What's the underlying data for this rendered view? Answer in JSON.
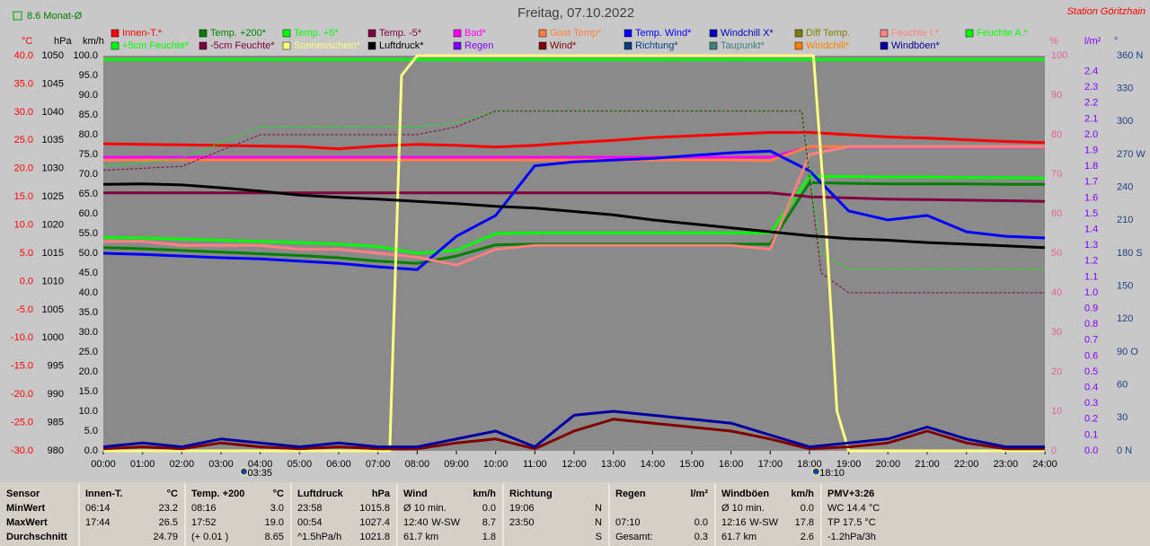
{
  "chart_data": {
    "type": "line",
    "title": "Freitag, 07.10.2022",
    "subtitle": "Station Göritzhain",
    "month_average_label": "8.6 Monat-Ø",
    "xlim": [
      0,
      24
    ],
    "xticks": [
      {
        "value": 0,
        "label": "00:00"
      },
      {
        "value": 1,
        "label": "01:00"
      },
      {
        "value": 2,
        "label": "02:00"
      },
      {
        "value": 3,
        "label": "03:00"
      },
      {
        "value": 4,
        "label": "04:00"
      },
      {
        "value": 5,
        "label": "05:00"
      },
      {
        "value": 6,
        "label": "06:00"
      },
      {
        "value": 7,
        "label": "07:00"
      },
      {
        "value": 8,
        "label": "08:00"
      },
      {
        "value": 9,
        "label": "09:00"
      },
      {
        "value": 10,
        "label": "10:00"
      },
      {
        "value": 11,
        "label": "11:00"
      },
      {
        "value": 12,
        "label": "12:00"
      },
      {
        "value": 13,
        "label": "13:00"
      },
      {
        "value": 14,
        "label": "14:00"
      },
      {
        "value": 15,
        "label": "15:00"
      },
      {
        "value": 16,
        "label": "16:00"
      },
      {
        "value": 17,
        "label": "17:00"
      },
      {
        "value": 18,
        "label": "18:00"
      },
      {
        "value": 19,
        "label": "19:00"
      },
      {
        "value": 20,
        "label": "20:00"
      },
      {
        "value": 21,
        "label": "21:00"
      },
      {
        "value": 22,
        "label": "22:00"
      },
      {
        "value": 23,
        "label": "23:00"
      },
      {
        "value": 24,
        "label": "24:00"
      }
    ],
    "x": [
      0,
      1,
      2,
      3,
      4,
      5,
      6,
      7,
      8,
      9,
      10,
      11,
      12,
      13,
      14,
      15,
      16,
      17,
      18,
      19,
      20,
      21,
      22,
      23,
      24
    ],
    "axes": [
      {
        "label": "°C",
        "color": "#ff0000",
        "lim": [
          -30,
          40
        ],
        "ticks": [
          {
            "value": 40,
            "label": "40.0"
          },
          {
            "value": 35,
            "label": "35.0"
          },
          {
            "value": 30,
            "label": "30.0"
          },
          {
            "value": 25,
            "label": "25.0"
          },
          {
            "value": 20,
            "label": "20.0"
          },
          {
            "value": 15,
            "label": "15.0"
          },
          {
            "value": 10,
            "label": "10.0"
          },
          {
            "value": 5,
            "label": "5.0"
          },
          {
            "value": 0,
            "label": "0.0"
          },
          {
            "value": -5,
            "label": "-5.0"
          },
          {
            "value": -10,
            "label": "-10.0"
          },
          {
            "value": -15,
            "label": "-15.0"
          },
          {
            "value": -20,
            "label": "-20.0"
          },
          {
            "value": -25,
            "label": "-25.0"
          },
          {
            "value": -30,
            "label": "-30.0"
          }
        ]
      },
      {
        "label": "hPa",
        "color": "#000000",
        "lim": [
          980,
          1050
        ],
        "ticks": [
          1050,
          1045,
          1040,
          1035,
          1030,
          1025,
          1020,
          1015,
          1010,
          1005,
          1000,
          995,
          990,
          985,
          980
        ]
      },
      {
        "label": "km/h",
        "color": "#000000",
        "lim": [
          0,
          100
        ],
        "ticks": [
          {
            "value": 100,
            "label": "100.0"
          },
          {
            "value": 95,
            "label": "95.0"
          },
          {
            "value": 90,
            "label": "90.0"
          },
          {
            "value": 85,
            "label": "85.0"
          },
          {
            "value": 80,
            "label": "80.0"
          },
          {
            "value": 75,
            "label": "75.0"
          },
          {
            "value": 70,
            "label": "70.0"
          },
          {
            "value": 65,
            "label": "65.0"
          },
          {
            "value": 60,
            "label": "60.0"
          },
          {
            "value": 55,
            "label": "55.0"
          },
          {
            "value": 50,
            "label": "50.0"
          },
          {
            "value": 45,
            "label": "45.0"
          },
          {
            "value": 40,
            "label": "40.0"
          },
          {
            "value": 35,
            "label": "35.0"
          },
          {
            "value": 30,
            "label": "30.0"
          },
          {
            "value": 25,
            "label": "25.0"
          },
          {
            "value": 20,
            "label": "20.0"
          },
          {
            "value": 15,
            "label": "15.0"
          },
          {
            "value": 10,
            "label": "10.0"
          },
          {
            "value": 5,
            "label": "5.0"
          },
          {
            "value": 0,
            "label": "0.0"
          }
        ]
      },
      {
        "label": "%",
        "color": "#e0609b",
        "lim": [
          0,
          100
        ],
        "ticks": [
          100,
          90,
          80,
          70,
          60,
          50,
          40,
          30,
          20,
          10,
          0
        ]
      },
      {
        "label": "l/m²",
        "color": "#8000ff",
        "lim": [
          0,
          2.5
        ],
        "ticks": [
          2.4,
          2.3,
          2.2,
          2.1,
          {
            "value": 2,
            "label": "2.0"
          },
          1.9,
          1.8,
          1.7,
          1.6,
          1.5,
          1.4,
          1.3,
          1.2,
          1.1,
          {
            "value": 1,
            "label": "1.0"
          },
          0.9,
          0.8,
          0.7,
          0.6,
          0.5,
          0.4,
          0.3,
          0.2,
          0.1,
          {
            "value": 0,
            "label": "0.0"
          }
        ]
      },
      {
        "label": "°",
        "color": "#204080",
        "lim": [
          0,
          360
        ],
        "ticks": [
          {
            "value": 360,
            "label": "360 N"
          },
          330,
          300,
          {
            "value": 270,
            "label": "270 W"
          },
          240,
          210,
          {
            "value": 180,
            "label": "180 S"
          },
          150,
          120,
          {
            "value": 90,
            "label": "90 O"
          },
          60,
          30,
          {
            "value": 0,
            "label": "0 N"
          }
        ]
      }
    ],
    "series": [
      {
        "name": "Innen-T.*",
        "color": "#ff0000",
        "axis": 0,
        "values": [
          24.4,
          24.3,
          24.2,
          24.1,
          24.0,
          23.9,
          23.5,
          24.0,
          24.3,
          24.1,
          23.8,
          24.1,
          24.6,
          25.0,
          25.5,
          25.8,
          26.1,
          26.4,
          26.4,
          26.0,
          25.6,
          25.4,
          25.1,
          24.8,
          24.6
        ]
      },
      {
        "name": "Temp. +200*",
        "color": "#008000",
        "axis": 0,
        "values": [
          6.0,
          5.8,
          5.5,
          5.2,
          4.9,
          4.6,
          4.2,
          3.6,
          3.2,
          4.5,
          6.5,
          6.6,
          6.6,
          6.6,
          6.6,
          6.6,
          6.6,
          6.6,
          17.5,
          17.4,
          17.3,
          17.3,
          17.3,
          17.2,
          17.2
        ]
      },
      {
        "name": "Temp. +5*",
        "color": "#00ff00",
        "axis": 0,
        "values": [
          7.8,
          7.7,
          7.5,
          7.3,
          7.1,
          6.9,
          6.6,
          6.2,
          5.0,
          5.5,
          8.5,
          8.6,
          8.6,
          8.6,
          8.6,
          8.6,
          8.6,
          8.6,
          18.6,
          18.6,
          18.5,
          18.5,
          18.4,
          18.4,
          18.3
        ]
      },
      {
        "name": "Temp. -5*",
        "color": "#800040",
        "axis": 0,
        "values": [
          15.7,
          15.7,
          15.7,
          15.7,
          15.7,
          15.7,
          15.7,
          15.7,
          15.7,
          15.7,
          15.7,
          15.7,
          15.7,
          15.7,
          15.7,
          15.7,
          15.7,
          15.7,
          15.0,
          14.8,
          14.6,
          14.5,
          14.4,
          14.3,
          14.2
        ]
      },
      {
        "name": "Bad*",
        "color": "#ff00ff",
        "axis": 0,
        "values": [
          22.0,
          22.0,
          22.0,
          22.0,
          22.0,
          22.0,
          22.0,
          22.0,
          22.0,
          22.0,
          22.0,
          22.0,
          22.0,
          22.0,
          22.0,
          22.0,
          22.0,
          22.0,
          23.8,
          23.8,
          23.8,
          23.8,
          23.8,
          23.8,
          23.8
        ]
      },
      {
        "name": "Gast Temp*",
        "color": "#ff8040",
        "axis": 0,
        "values": [
          21.5,
          21.5,
          21.5,
          21.5,
          21.5,
          21.5,
          21.5,
          21.5,
          21.5,
          21.5,
          21.5,
          21.5,
          21.5,
          21.5,
          21.5,
          21.5,
          21.5,
          21.4,
          23.9,
          23.9,
          23.9,
          23.9,
          23.9,
          23.9,
          23.9
        ]
      },
      {
        "name": "Temp. Wind*",
        "color": "#0000ff",
        "axis": 0,
        "values": [
          5.0,
          4.8,
          4.5,
          4.2,
          4.0,
          3.6,
          3.2,
          2.6,
          2.1,
          8.0,
          11.7,
          20.5,
          21.2,
          21.5,
          21.8,
          22.3,
          22.8,
          23.1,
          19.6,
          12.5,
          10.9,
          11.7,
          8.8,
          8.0,
          7.7
        ]
      },
      {
        "name": "Windchill X*",
        "color": "#0000c0",
        "axis": 0
      },
      {
        "name": "Diff Temp.",
        "color": "#808000",
        "axis": 0
      },
      {
        "name": "Feuchte I.*",
        "color": "#ff8080",
        "axis": 3,
        "values": [
          53,
          53,
          52,
          52,
          52,
          51,
          51,
          50,
          49,
          47,
          51,
          52,
          52,
          52,
          52,
          52,
          52,
          51,
          75,
          77,
          77,
          77,
          77,
          77,
          77
        ]
      },
      {
        "name": "Feuchte A.*",
        "color": "#00ff00",
        "axis": 3,
        "values": [
          99,
          99,
          99,
          99,
          99,
          99,
          99,
          99,
          99,
          99,
          99,
          99,
          99,
          99,
          99,
          99,
          99,
          99,
          99,
          99,
          99,
          99,
          99,
          99,
          99
        ]
      },
      {
        "name": "+5cm Feuchte*",
        "color": "#00ff00",
        "axis": 3,
        "style": "dashed",
        "x": [
          0,
          2,
          4,
          6,
          8,
          9,
          10,
          17.6,
          17.8,
          18.3,
          19,
          24
        ],
        "values": [
          72,
          74,
          82,
          82,
          82,
          83,
          86,
          86,
          86,
          50,
          46,
          46
        ]
      },
      {
        "name": "-5cm Feuchte*",
        "color": "#800040",
        "axis": 3,
        "style": "dashed",
        "x": [
          0,
          2,
          4,
          6,
          8,
          9,
          10,
          17.6,
          17.8,
          18.3,
          19,
          24
        ],
        "values": [
          71,
          72,
          80,
          80,
          80,
          82,
          86,
          86,
          86,
          45,
          40,
          40
        ]
      },
      {
        "name": "Sonnenschein*",
        "color": "#ffff80",
        "axis": 3,
        "x": [
          0,
          7.3,
          7.6,
          8,
          17.5,
          18.1,
          18.4,
          18.7,
          19,
          24
        ],
        "values": [
          0,
          0,
          95,
          100,
          100,
          100,
          60,
          10,
          0,
          0
        ]
      },
      {
        "name": "Luftdruck*",
        "color": "#000000",
        "axis": 1,
        "values": [
          1027.2,
          1027.3,
          1027.1,
          1026.6,
          1026.0,
          1025.3,
          1024.9,
          1024.6,
          1024.2,
          1023.8,
          1023.3,
          1023.0,
          1022.4,
          1021.8,
          1020.9,
          1020.2,
          1019.5,
          1018.8,
          1018.1,
          1017.6,
          1017.3,
          1016.9,
          1016.6,
          1016.3,
          1016.0
        ]
      },
      {
        "name": "Regen",
        "color": "#8000ff",
        "axis": 4
      },
      {
        "name": "Wind*",
        "color": "#800000",
        "axis": 2,
        "values": [
          0.5,
          1,
          0.5,
          2,
          1,
          0.5,
          1,
          0.5,
          0.5,
          2,
          3,
          0.5,
          5,
          8,
          7,
          6,
          5,
          3,
          0.5,
          1,
          2,
          5,
          2,
          0.5,
          0.5
        ]
      },
      {
        "name": "Richtung*",
        "color": "#004080",
        "axis": 5
      },
      {
        "name": "Taupunkt*",
        "color": "#408080",
        "axis": 0
      },
      {
        "name": "Windchill*",
        "color": "#ff8000",
        "axis": 0
      },
      {
        "name": "Windböen*",
        "color": "#0000a0",
        "axis": 2,
        "values": [
          1,
          2,
          1,
          3,
          2,
          1,
          2,
          1,
          1,
          3,
          5,
          1,
          9,
          10,
          9,
          8,
          7,
          4,
          1,
          2,
          3,
          6,
          3,
          1,
          1
        ]
      }
    ],
    "annotations": [
      {
        "x": 3.583,
        "label": "03:35"
      },
      {
        "x": 18.167,
        "label": "18:10"
      }
    ]
  },
  "table": {
    "columns": [
      {
        "title": "Sensor"
      },
      {
        "title": "Innen-T.",
        "unit": "°C"
      },
      {
        "title": "Temp. +200",
        "unit": "°C"
      },
      {
        "title": "Luftdruck",
        "unit": "hPa"
      },
      {
        "title": "Wind",
        "unit": "km/h"
      },
      {
        "title": "Richtung"
      },
      {
        "title": "Regen",
        "unit": "l/m²"
      },
      {
        "title": "Windböen",
        "unit": "km/h"
      },
      {
        "title": "PMV+3:26"
      }
    ],
    "rows": [
      {
        "label": "MinWert",
        "cells": [
          [
            "06:14",
            "23.2"
          ],
          [
            "08:16",
            "3.0"
          ],
          [
            "23:58",
            "1015.8"
          ],
          [
            "Ø 10 min.",
            "0.0"
          ],
          [
            "19:06",
            "N"
          ],
          [],
          [
            "Ø 10 min.",
            "0.0"
          ],
          [
            "WC 14.4 °C"
          ]
        ]
      },
      {
        "label": "MaxWert",
        "cells": [
          [
            "17:44",
            "26.5"
          ],
          [
            "17:52",
            "19.0"
          ],
          [
            "00:54",
            "1027.4"
          ],
          [
            "12:40",
            "W-SW",
            "8.7"
          ],
          [
            "23:50",
            "N"
          ],
          [
            "07:10",
            "0.0"
          ],
          [
            "12:16",
            "W-SW",
            "17.8"
          ],
          [
            "TP 17.5 °C"
          ]
        ]
      },
      {
        "label": "Durchschnitt",
        "cells": [
          [
            "24.79"
          ],
          [
            "(+ 0.01 )",
            "8.65"
          ],
          [
            "^1.5hPa/h",
            "1021.8"
          ],
          [
            "61.7 km",
            "1.8"
          ],
          [
            "S"
          ],
          [
            "Gesamt:",
            "0.3"
          ],
          [
            "61.7 km",
            "2.6"
          ],
          [
            "-1.2hPa/3h"
          ]
        ]
      }
    ]
  }
}
